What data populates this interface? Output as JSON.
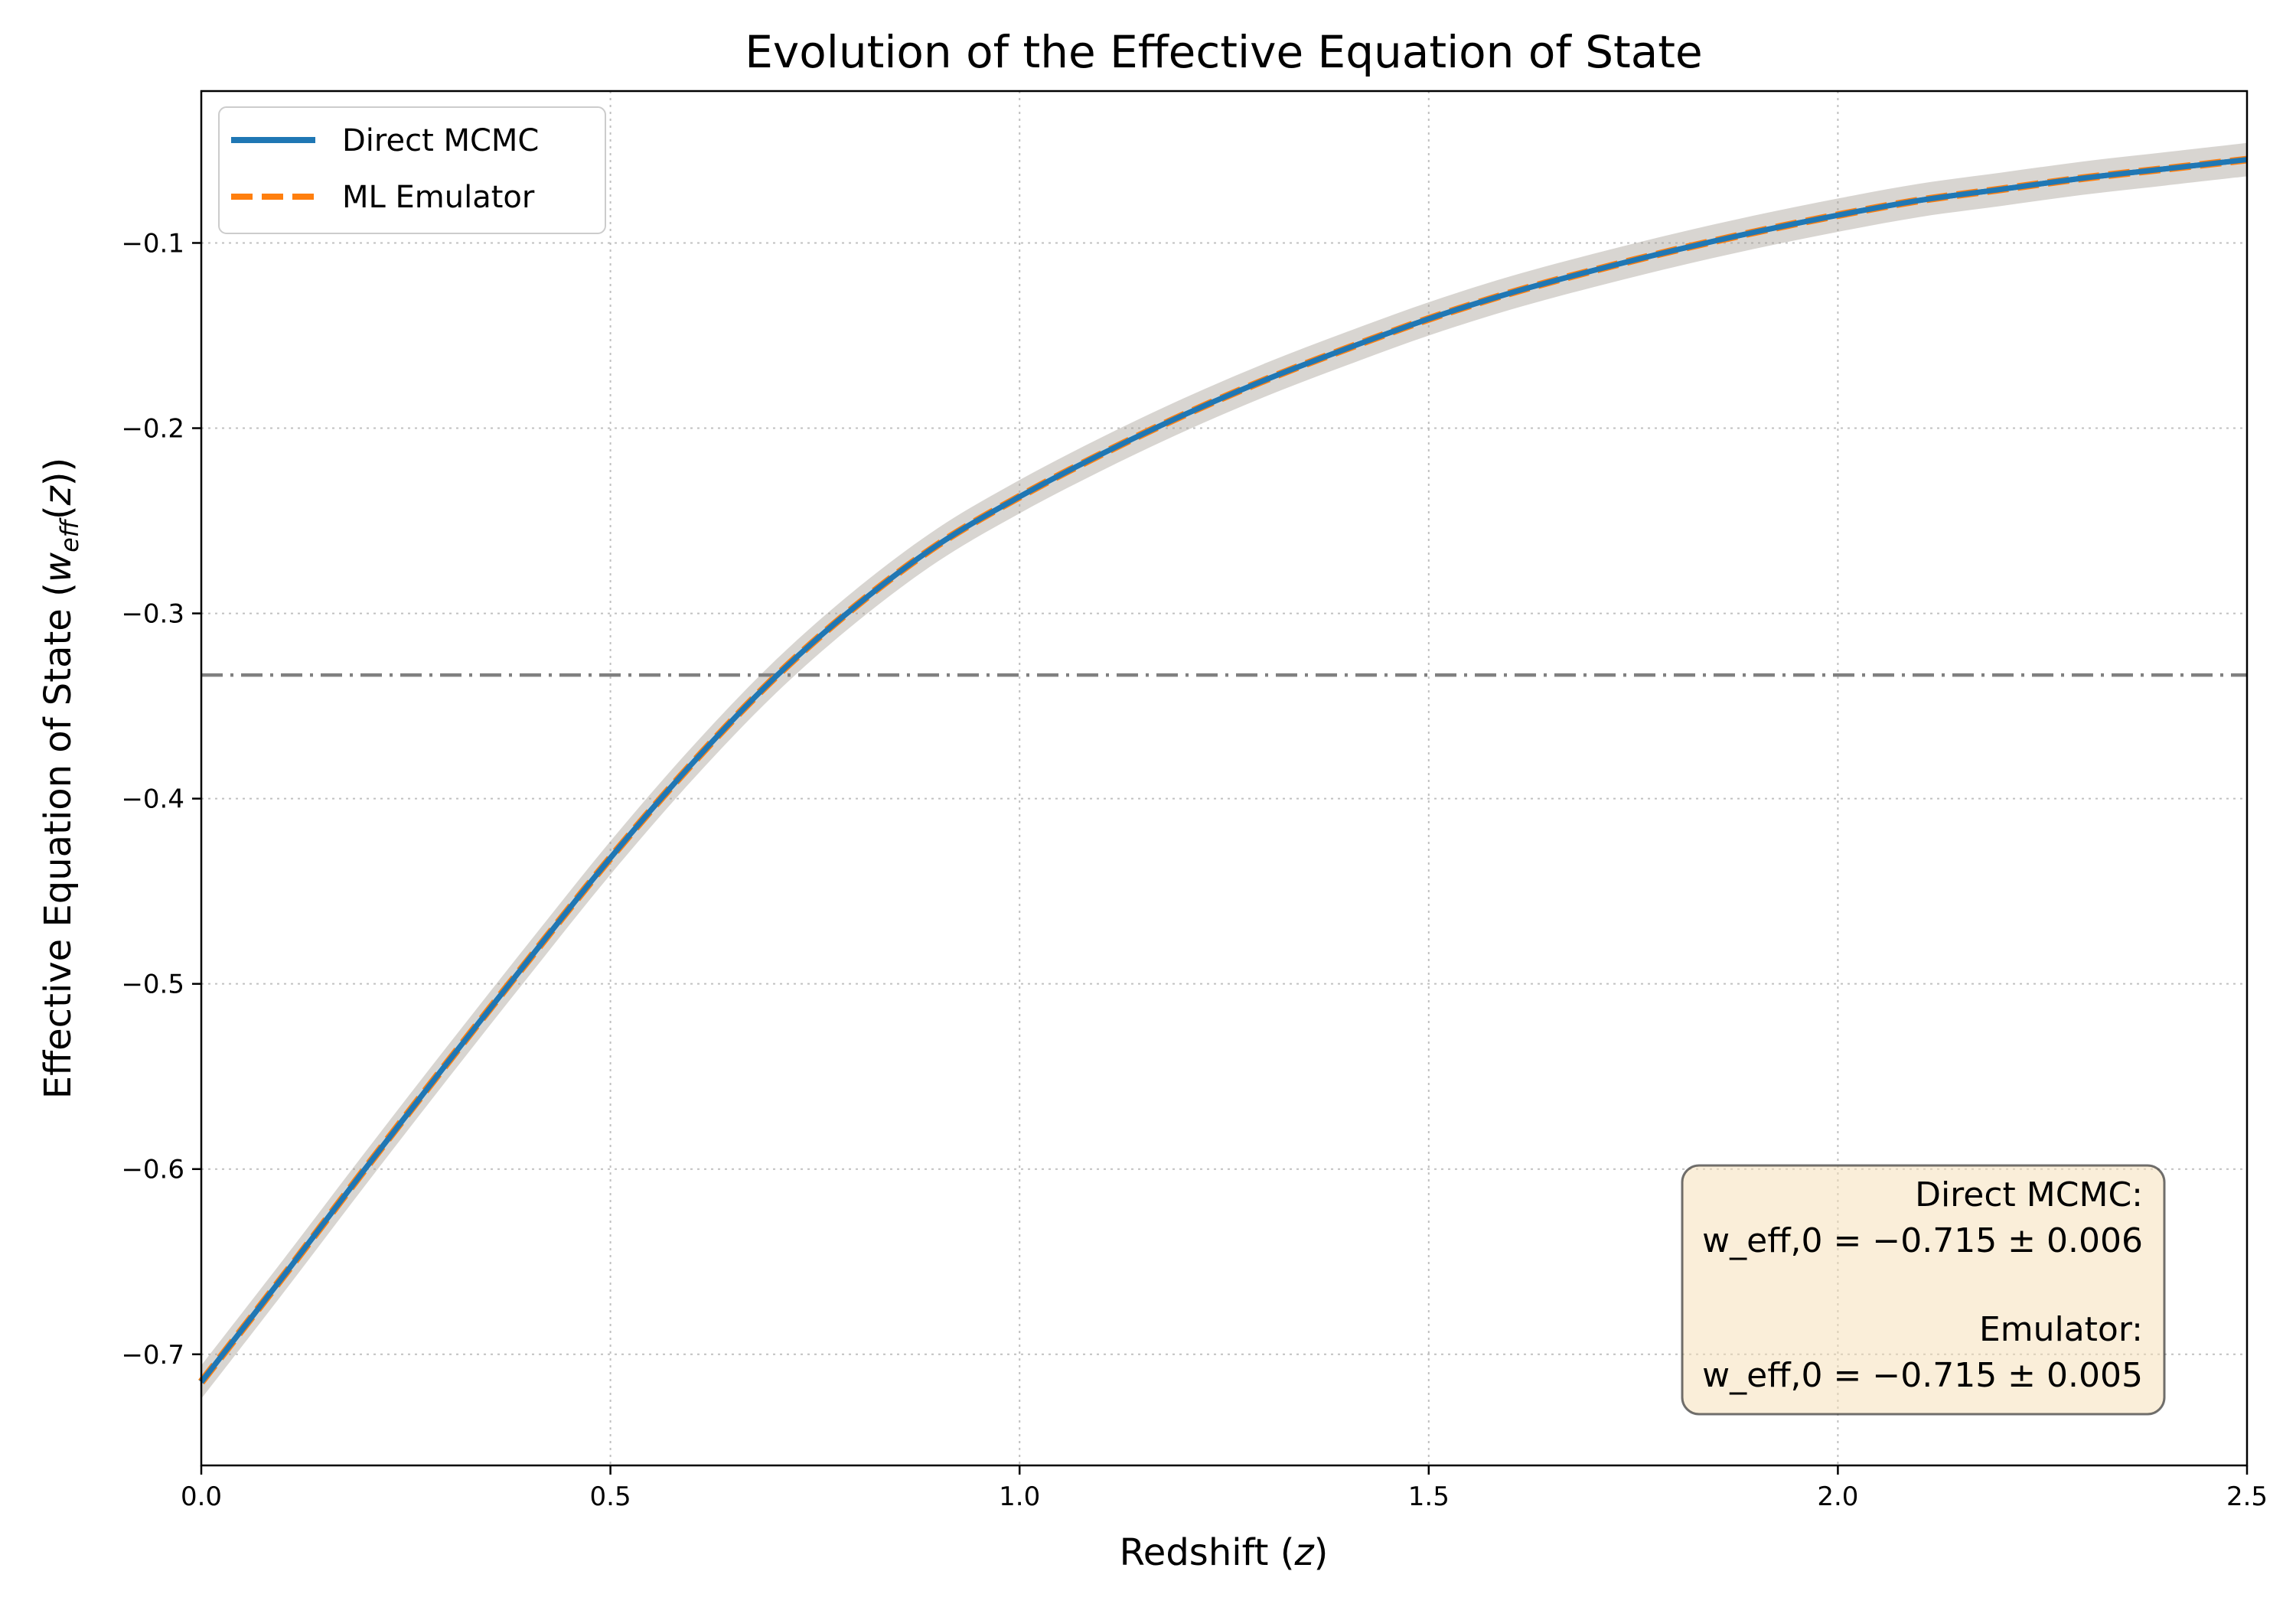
{
  "chart_data": {
    "type": "line",
    "title": "Evolution of the Effective Equation of State",
    "xlabel": "Redshift (z)",
    "ylabel": "Effective Equation of State (w_eff(z))",
    "xlim": [
      0.0,
      2.5
    ],
    "ylim": [
      -0.76,
      -0.018
    ],
    "grid": true,
    "xticks": [
      0.0,
      0.5,
      1.0,
      1.5,
      2.0,
      2.5
    ],
    "xtick_labels": [
      "0.0",
      "0.5",
      "1.0",
      "1.5",
      "2.0",
      "2.5"
    ],
    "yticks": [
      -0.7,
      -0.6,
      -0.5,
      -0.4,
      -0.3,
      -0.2,
      -0.1
    ],
    "ytick_labels": [
      "−0.7",
      "−0.6",
      "−0.5",
      "−0.4",
      "−0.3",
      "−0.2",
      "−0.1"
    ],
    "x": [
      0.0,
      0.1,
      0.2,
      0.3,
      0.4,
      0.5,
      0.6,
      0.7,
      0.8,
      0.9,
      1.0,
      1.1,
      1.2,
      1.3,
      1.4,
      1.5,
      1.6,
      1.7,
      1.8,
      1.9,
      2.0,
      2.1,
      2.2,
      2.3,
      2.4,
      2.5
    ],
    "series": [
      {
        "name": "Direct MCMC",
        "color": "#1f77b4",
        "style": "solid",
        "values": [
          -0.715,
          -0.658,
          -0.6,
          -0.543,
          -0.487,
          -0.432,
          -0.381,
          -0.335,
          -0.296,
          -0.263,
          -0.237,
          -0.214,
          -0.193,
          -0.174,
          -0.157,
          -0.141,
          -0.127,
          -0.115,
          -0.104,
          -0.094,
          -0.085,
          -0.077,
          -0.071,
          -0.065,
          -0.06,
          -0.055
        ]
      },
      {
        "name": "ML Emulator",
        "color": "#ff7f0e",
        "style": "dashed",
        "values": [
          -0.715,
          -0.658,
          -0.6,
          -0.543,
          -0.487,
          -0.432,
          -0.381,
          -0.335,
          -0.296,
          -0.263,
          -0.237,
          -0.214,
          -0.193,
          -0.174,
          -0.157,
          -0.141,
          -0.127,
          -0.115,
          -0.104,
          -0.094,
          -0.085,
          -0.077,
          -0.071,
          -0.065,
          -0.06,
          -0.055
        ]
      }
    ],
    "uncertainty_band": {
      "half_width": 0.009,
      "color": "#a9a29a"
    },
    "reference_line": {
      "y": -0.3333,
      "color": "#808080",
      "style": "dashdot"
    },
    "legend": {
      "position": "top-left",
      "entries": [
        "Direct MCMC",
        "ML Emulator"
      ]
    },
    "annotation": {
      "position": "bottom-right",
      "line1": "Direct MCMC:",
      "line2": "w_eff,0 = −0.715 ± 0.006",
      "line3": "Emulator:",
      "line4": "w_eff,0 = −0.715 ± 0.005"
    }
  }
}
